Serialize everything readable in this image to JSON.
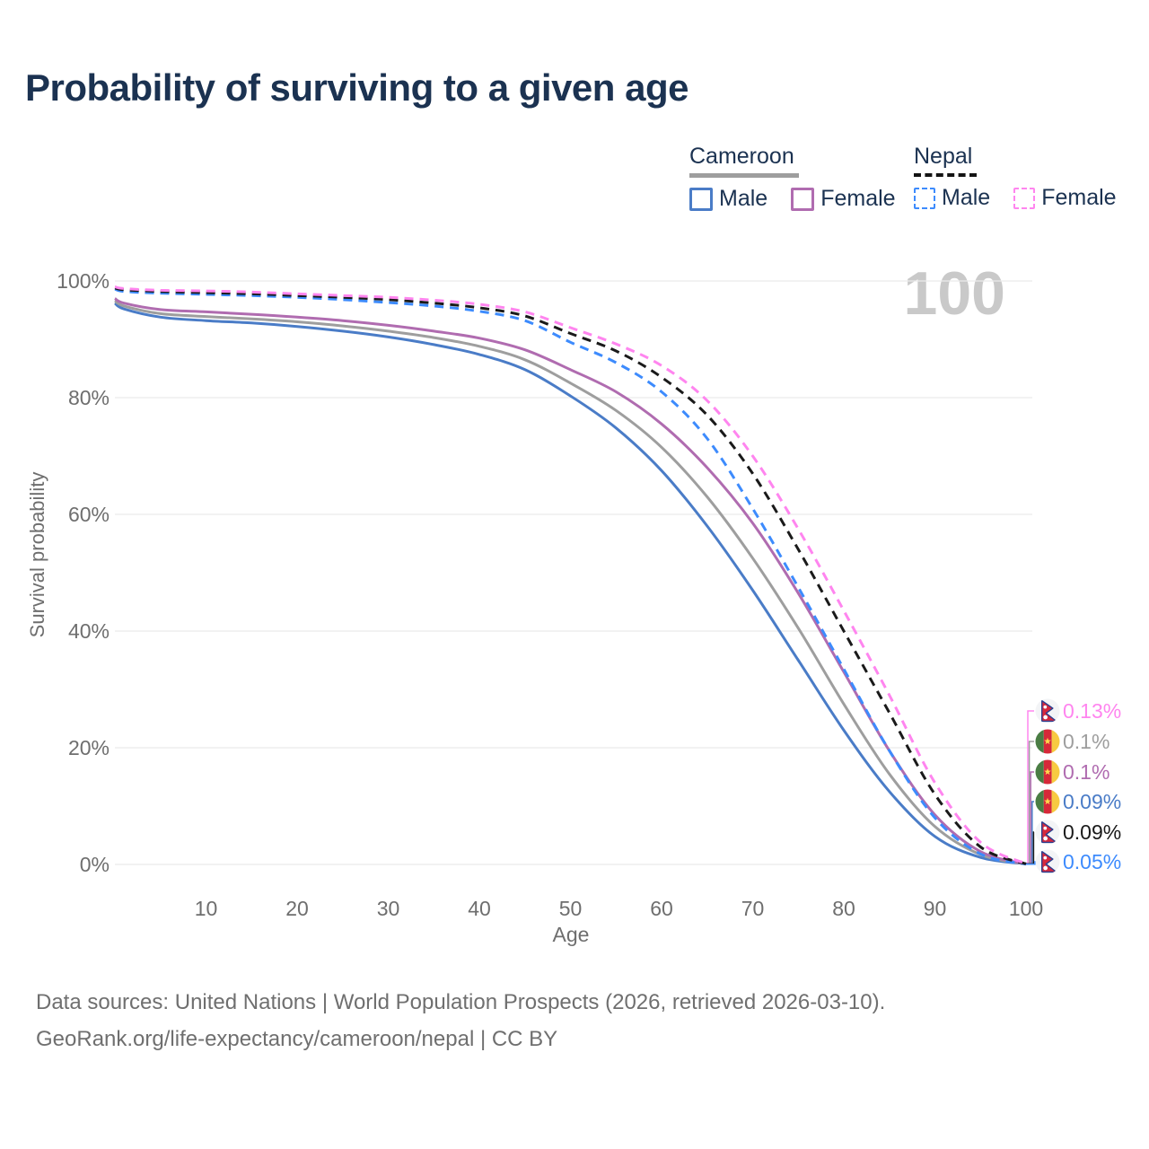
{
  "title": "Probability of surviving to a given age",
  "watermark": "100",
  "legend": {
    "cameroon": {
      "label": "Cameroon",
      "male": "Male",
      "female": "Female"
    },
    "nepal": {
      "label": "Nepal",
      "male": "Male",
      "female": "Female"
    }
  },
  "footer": {
    "line1": "Data sources: United Nations | World Population Prospects (2026, retrieved 2026-03-10).",
    "line2": "GeoRank.org/life-expectancy/cameroon/nepal | CC BY"
  },
  "colors": {
    "cameroon_male": "#4a7cc7",
    "cameroon_female": "#b06cb0",
    "cameroon_total": "#9e9e9e",
    "nepal_male": "#3d8bfd",
    "nepal_female": "#ff85ef",
    "nepal_total": "#1a1a1a",
    "grid": "#ebebeb",
    "axis_text": "#6e6e6e",
    "title_text": "#1b3251",
    "watermark_text": "#c9c9c9"
  },
  "flag_colors": {
    "cameroon": {
      "green": "#4a7d44",
      "red": "#d62939",
      "yellow": "#f7ca41",
      "star": "#ffd84d"
    },
    "nepal": {
      "bg": "#f3f4f6",
      "crimson": "#d6293d",
      "border": "#2a3f90",
      "symbol": "#ffffff"
    }
  },
  "chart_data": {
    "type": "line",
    "x_label": "Age",
    "y_label": "Survival probability",
    "x_range": [
      0,
      100
    ],
    "y_range": [
      0,
      100
    ],
    "grid": "horizontal-only",
    "legend_position": "top-right",
    "x_ticks": [
      {
        "value": 10,
        "label": "10"
      },
      {
        "value": 20,
        "label": "20"
      },
      {
        "value": 30,
        "label": "30"
      },
      {
        "value": 40,
        "label": "40"
      },
      {
        "value": 50,
        "label": "50"
      },
      {
        "value": 60,
        "label": "60"
      },
      {
        "value": 70,
        "label": "70"
      },
      {
        "value": 80,
        "label": "80"
      },
      {
        "value": 90,
        "label": "90"
      },
      {
        "value": 100,
        "label": "100"
      }
    ],
    "y_ticks": [
      {
        "value": 0,
        "label": "0%"
      },
      {
        "value": 20,
        "label": "20%"
      },
      {
        "value": 40,
        "label": "40%"
      },
      {
        "value": 60,
        "label": "60%"
      },
      {
        "value": 80,
        "label": "80%"
      },
      {
        "value": 100,
        "label": "100%"
      }
    ],
    "ages": [
      0,
      1,
      5,
      10,
      15,
      20,
      25,
      30,
      35,
      40,
      45,
      50,
      55,
      60,
      65,
      70,
      75,
      80,
      85,
      90,
      95,
      100
    ],
    "series": [
      {
        "id": "cameroon_male",
        "name": "Cameroon Male",
        "country": "cameroon",
        "style": "solid",
        "color": "#4a7cc7",
        "values": [
          96.2,
          95.2,
          93.8,
          93.2,
          92.8,
          92.2,
          91.4,
          90.4,
          89.1,
          87.4,
          84.8,
          80.3,
          74.8,
          67.5,
          58.0,
          47.0,
          35.0,
          23.0,
          12.5,
          4.8,
          1.2,
          0.09
        ]
      },
      {
        "id": "cameroon_total",
        "name": "Cameroon Total",
        "country": "cameroon",
        "style": "solid",
        "color": "#9e9e9e",
        "values": [
          96.6,
          95.7,
          94.4,
          93.9,
          93.5,
          93.0,
          92.3,
          91.4,
          90.3,
          88.8,
          86.5,
          82.5,
          77.8,
          71.5,
          63.0,
          52.5,
          40.5,
          27.5,
          15.5,
          6.5,
          1.7,
          0.1
        ]
      },
      {
        "id": "cameroon_female",
        "name": "Cameroon Female",
        "country": "cameroon",
        "style": "solid",
        "color": "#b06cb0",
        "values": [
          97.0,
          96.2,
          95.1,
          94.7,
          94.3,
          93.8,
          93.2,
          92.4,
          91.4,
          90.2,
          88.2,
          84.8,
          81.0,
          75.5,
          68.0,
          58.5,
          46.5,
          33.0,
          19.5,
          8.5,
          2.2,
          0.1
        ]
      },
      {
        "id": "nepal_male",
        "name": "Nepal Male",
        "country": "nepal",
        "style": "dashed",
        "color": "#3d8bfd",
        "values": [
          98.6,
          98.2,
          97.9,
          97.7,
          97.5,
          97.2,
          96.8,
          96.3,
          95.7,
          94.8,
          93.2,
          89.5,
          86.0,
          81.0,
          73.0,
          61.0,
          47.5,
          33.5,
          19.5,
          8.0,
          1.8,
          0.05
        ]
      },
      {
        "id": "nepal_total",
        "name": "Nepal Total",
        "country": "nepal",
        "style": "dashed",
        "color": "#1a1a1a",
        "values": [
          98.8,
          98.5,
          98.2,
          98.0,
          97.8,
          97.5,
          97.2,
          96.8,
          96.2,
          95.4,
          94.0,
          91.0,
          88.0,
          83.5,
          77.0,
          67.0,
          54.0,
          40.0,
          26.0,
          12.0,
          3.0,
          0.09
        ]
      },
      {
        "id": "nepal_female",
        "name": "Nepal Female",
        "country": "nepal",
        "style": "dashed",
        "color": "#ff85ef",
        "values": [
          99.0,
          98.7,
          98.4,
          98.3,
          98.1,
          97.8,
          97.5,
          97.2,
          96.7,
          96.0,
          94.7,
          92.0,
          89.2,
          85.5,
          79.5,
          70.0,
          57.5,
          43.5,
          29.0,
          14.0,
          3.8,
          0.13
        ]
      }
    ],
    "end_labels": [
      {
        "flag": "nepal",
        "label": "0.13%",
        "color": "#ff85ef",
        "series": "nepal_female",
        "value": 0.13
      },
      {
        "flag": "cameroon",
        "label": "0.1%",
        "color": "#9e9e9e",
        "series": "cameroon_total",
        "value": 0.1
      },
      {
        "flag": "cameroon",
        "label": "0.1%",
        "color": "#b06cb0",
        "series": "cameroon_female",
        "value": 0.1
      },
      {
        "flag": "cameroon",
        "label": "0.09%",
        "color": "#4a7cc7",
        "series": "cameroon_male",
        "value": 0.09
      },
      {
        "flag": "nepal",
        "label": "0.09%",
        "color": "#1a1a1a",
        "series": "nepal_total",
        "value": 0.09
      },
      {
        "flag": "nepal",
        "label": "0.05%",
        "color": "#3d8bfd",
        "series": "nepal_male",
        "value": 0.05
      }
    ]
  }
}
